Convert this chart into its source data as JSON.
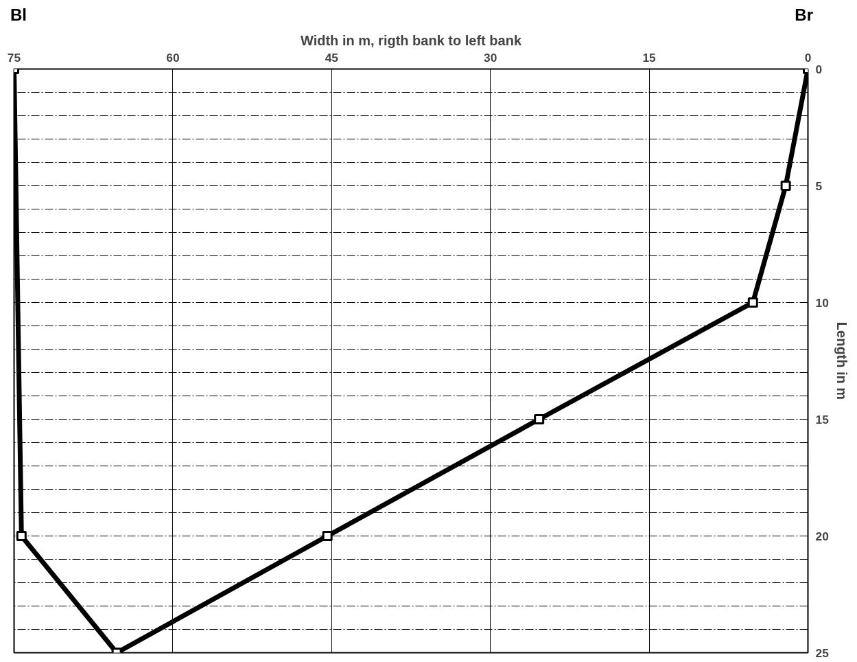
{
  "chart_data": {
    "type": "line",
    "xlabel": "Width in m, rigth bank to left bank",
    "ylabel": "Length in m",
    "annotations": [
      "Bl",
      "Br"
    ],
    "series": [
      {
        "color": "#000000",
        "x": [
          0,
          2.1,
          5.2,
          25.4,
          45.4,
          65.3,
          74.3,
          75
        ],
        "values": [
          0,
          5,
          10,
          15,
          20,
          25,
          20,
          0
        ]
      }
    ],
    "xlim": [
      75,
      0
    ],
    "xticks": [
      75,
      60,
      45,
      30,
      15,
      0
    ],
    "ylim": [
      25,
      0
    ],
    "yticks": [
      0,
      {
        "value": 1,
        "label": null
      },
      {
        "value": 2,
        "label": null
      },
      {
        "value": 3,
        "label": null
      },
      {
        "value": 4,
        "label": null
      },
      5,
      {
        "value": 6,
        "label": null
      },
      {
        "value": 7,
        "label": null
      },
      {
        "value": 8,
        "label": null
      },
      {
        "value": 9,
        "label": null
      },
      10,
      {
        "value": 11,
        "label": null
      },
      {
        "value": 12,
        "label": null
      },
      {
        "value": 13,
        "label": null
      },
      {
        "value": 14,
        "label": null
      },
      15,
      {
        "value": 16,
        "label": null
      },
      {
        "value": 17,
        "label": null
      },
      {
        "value": 18,
        "label": null
      },
      {
        "value": 19,
        "label": null
      },
      20,
      {
        "value": 21,
        "label": null
      },
      {
        "value": 22,
        "label": null
      },
      {
        "value": 23,
        "label": null
      },
      {
        "value": 24,
        "label": null
      },
      25
    ],
    "grid": true,
    "marker": "square",
    "line_style": "solid"
  }
}
